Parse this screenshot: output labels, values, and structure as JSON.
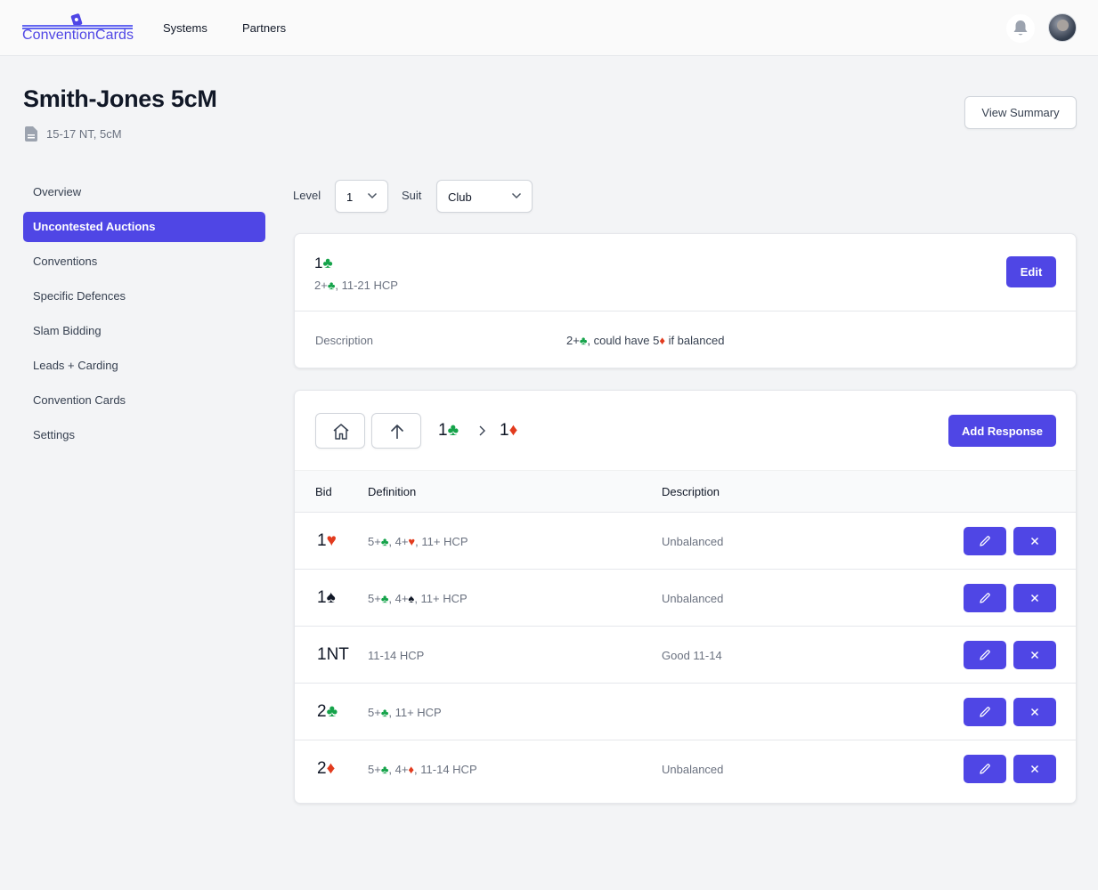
{
  "app": {
    "logo_text": "ConventionCards"
  },
  "nav": {
    "systems": "Systems",
    "partners": "Partners"
  },
  "header": {
    "title": "Smith-Jones 5cM",
    "subtitle": "15-17 NT, 5cM",
    "summary_button": "View Summary"
  },
  "sidebar": {
    "items": [
      {
        "label": "Overview"
      },
      {
        "label": "Uncontested Auctions"
      },
      {
        "label": "Conventions"
      },
      {
        "label": "Specific Defences"
      },
      {
        "label": "Slam Bidding"
      },
      {
        "label": "Leads + Carding"
      },
      {
        "label": "Convention Cards"
      },
      {
        "label": "Settings"
      }
    ],
    "active_index": 1
  },
  "filters": {
    "level_label": "Level",
    "level_value": "1",
    "suit_label": "Suit",
    "suit_value": "Club"
  },
  "bid_card": {
    "bid_level": "1",
    "bid_suit": "♣",
    "summary_prefix": "2+",
    "summary_suit": "♣",
    "summary_rest": ", 11-21 HCP",
    "edit_label": "Edit",
    "description_label": "Description",
    "description_part1": "2+",
    "description_suit1": "♣",
    "description_part2": ", could have 5",
    "description_suit2": "♦",
    "description_part3": " if balanced"
  },
  "responses": {
    "breadcrumb": [
      {
        "level": "1",
        "suit": "♣"
      },
      {
        "level": "1",
        "suit": "♦"
      }
    ],
    "add_label": "Add Response",
    "columns": {
      "bid": "Bid",
      "definition": "Definition",
      "description": "Description"
    },
    "rows": [
      {
        "bid_level": "1",
        "bid_suit": "♥",
        "def_a": "5+",
        "def_a_suit": "♣",
        "def_b": ", 4+",
        "def_b_suit": "♥",
        "def_c": ", 11+ HCP",
        "description": "Unbalanced"
      },
      {
        "bid_level": "1",
        "bid_suit": "♠",
        "def_a": "5+",
        "def_a_suit": "♣",
        "def_b": ", 4+",
        "def_b_suit": "♠",
        "def_c": ", 11+ HCP",
        "description": "Unbalanced"
      },
      {
        "bid_level": "1NT",
        "bid_suit": "",
        "def_a": "11-14 HCP",
        "def_a_suit": "",
        "def_b": "",
        "def_b_suit": "",
        "def_c": "",
        "description": "Good 11-14"
      },
      {
        "bid_level": "2",
        "bid_suit": "♣",
        "def_a": "5+",
        "def_a_suit": "♣",
        "def_b": ", 11+ HCP",
        "def_b_suit": "",
        "def_c": "",
        "description": ""
      },
      {
        "bid_level": "2",
        "bid_suit": "♦",
        "def_a": "5+",
        "def_a_suit": "♣",
        "def_b": ", 4+",
        "def_b_suit": "♦",
        "def_c": ", 11-14 HCP",
        "description": "Unbalanced"
      }
    ]
  },
  "colors": {
    "accent": "#4f46e5",
    "club": "#15a34a",
    "diamond_heart": "#e23b1e",
    "spade": "#111827"
  },
  "icons": [
    "bell-icon",
    "document-icon",
    "chevron-down-icon",
    "home-icon",
    "arrow-up-icon",
    "chevron-right-icon",
    "pencil-icon",
    "close-icon"
  ]
}
